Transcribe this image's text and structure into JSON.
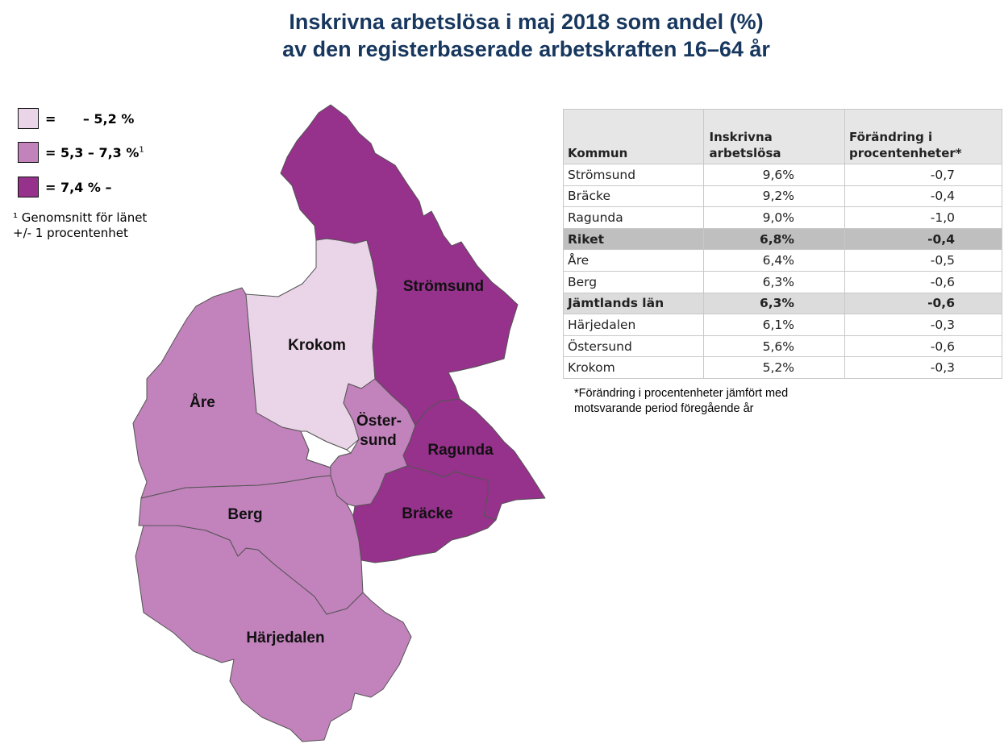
{
  "title": {
    "line1": "Inskrivna arbetslösa i maj 2018 som andel (%)",
    "line2": "av den registerbaserade arbetskraften 16–64 år"
  },
  "legend": {
    "items": [
      {
        "text": "=      – 5,2 %",
        "color": "#ead5e8",
        "sup": ""
      },
      {
        "text": "= 5,3 – 7,3 %",
        "color": "#c282bc",
        "sup": "1"
      },
      {
        "text": "= 7,4 % –",
        "color": "#96318c",
        "sup": ""
      }
    ],
    "footnote_line1": "¹ Genomsnitt för länet",
    "footnote_line2": "+/- 1 procentenhet"
  },
  "map": {
    "colors": {
      "low": "#ead5e8",
      "mid": "#c282bc",
      "high": "#96318c"
    },
    "regions": [
      {
        "name": "Strömsund",
        "class": "high"
      },
      {
        "name": "Krokom",
        "class": "low"
      },
      {
        "name": "Åre",
        "class": "mid"
      },
      {
        "name": "Öster-",
        "name2": "sund",
        "class": "mid"
      },
      {
        "name": "Ragunda",
        "class": "high"
      },
      {
        "name": "Bräcke",
        "class": "high"
      },
      {
        "name": "Berg",
        "class": "mid"
      },
      {
        "name": "Härjedalen",
        "class": "mid"
      }
    ]
  },
  "table": {
    "headers": [
      "Kommun",
      "Inskrivna arbetslösa",
      "Förändring i procentenheter*"
    ],
    "rows": [
      {
        "kommun": "Strömsund",
        "andel": "9,6%",
        "forandring": "-0,7",
        "type": "normal"
      },
      {
        "kommun": "Bräcke",
        "andel": "9,2%",
        "forandring": "-0,4",
        "type": "normal"
      },
      {
        "kommun": "Ragunda",
        "andel": "9,0%",
        "forandring": "-1,0",
        "type": "normal"
      },
      {
        "kommun": "Riket",
        "andel": "6,8%",
        "forandring": "-0,4",
        "type": "riket"
      },
      {
        "kommun": "Åre",
        "andel": "6,4%",
        "forandring": "-0,5",
        "type": "normal"
      },
      {
        "kommun": "Berg",
        "andel": "6,3%",
        "forandring": "-0,6",
        "type": "normal"
      },
      {
        "kommun": "Jämtlands län",
        "andel": "6,3%",
        "forandring": "-0,6",
        "type": "lan"
      },
      {
        "kommun": "Härjedalen",
        "andel": "6,1%",
        "forandring": "-0,3",
        "type": "normal"
      },
      {
        "kommun": "Östersund",
        "andel": "5,6%",
        "forandring": "-0,6",
        "type": "normal"
      },
      {
        "kommun": "Krokom",
        "andel": "5,2%",
        "forandring": "-0,3",
        "type": "normal"
      }
    ],
    "note_line1": "*Förändring i procentenheter jämfört med",
    "note_line2": "motsvarande period föregående år"
  }
}
